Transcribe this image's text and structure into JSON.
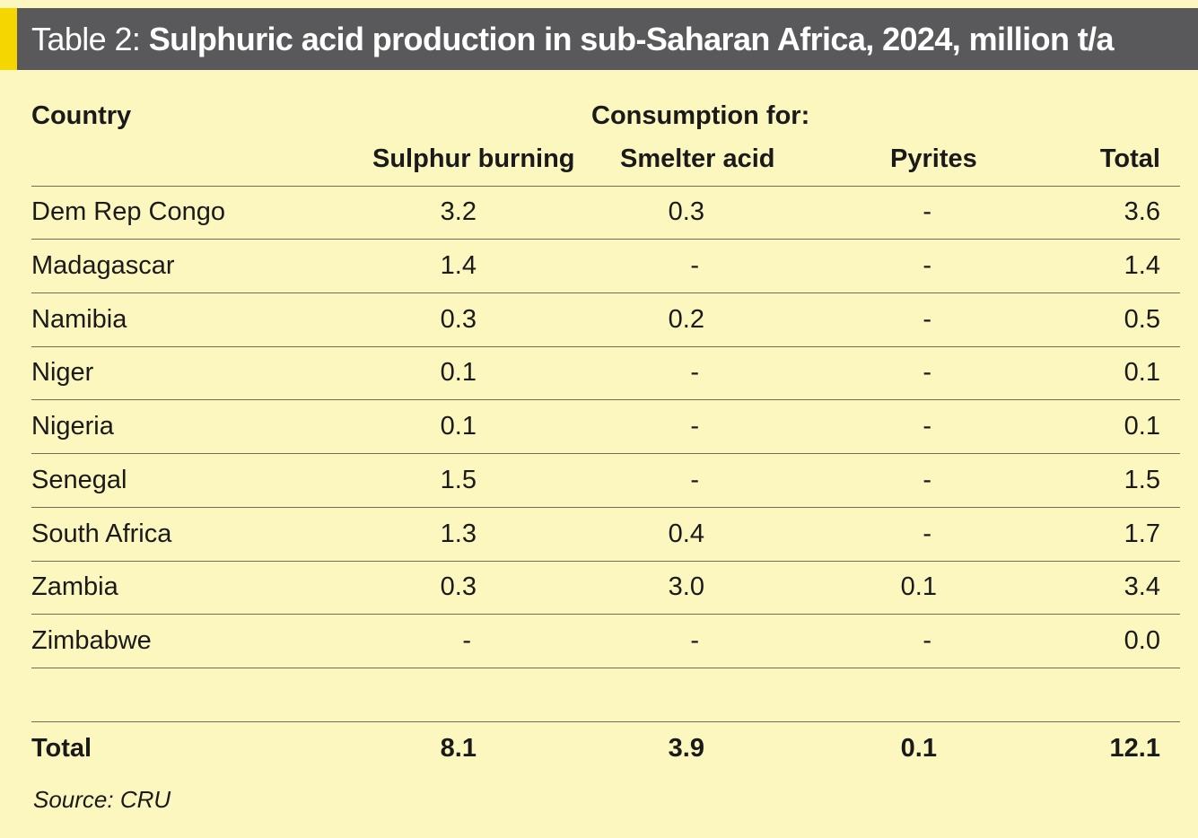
{
  "title": {
    "lead": "Table 2: ",
    "main": "Sulphuric acid production in sub-Saharan Africa, 2024, million t/a"
  },
  "headers": {
    "country": "Country",
    "group": "Consumption for:",
    "sulphur_burning": "Sulphur burning",
    "smelter_acid": "Smelter acid",
    "pyrites": "Pyrites",
    "total": "Total"
  },
  "rows": [
    {
      "country": "Dem Rep Congo",
      "sulphur_burning": "3.2",
      "smelter_acid": "0.3",
      "pyrites": "-",
      "total": "3.6"
    },
    {
      "country": "Madagascar",
      "sulphur_burning": "1.4",
      "smelter_acid": "-",
      "pyrites": "-",
      "total": "1.4"
    },
    {
      "country": "Namibia",
      "sulphur_burning": "0.3",
      "smelter_acid": "0.2",
      "pyrites": "-",
      "total": "0.5"
    },
    {
      "country": "Niger",
      "sulphur_burning": "0.1",
      "smelter_acid": "-",
      "pyrites": "-",
      "total": "0.1"
    },
    {
      "country": "Nigeria",
      "sulphur_burning": "0.1",
      "smelter_acid": "-",
      "pyrites": "-",
      "total": "0.1"
    },
    {
      "country": "Senegal",
      "sulphur_burning": "1.5",
      "smelter_acid": "-",
      "pyrites": "-",
      "total": "1.5"
    },
    {
      "country": "South Africa",
      "sulphur_burning": "1.3",
      "smelter_acid": "0.4",
      "pyrites": "-",
      "total": "1.7"
    },
    {
      "country": "Zambia",
      "sulphur_burning": "0.3",
      "smelter_acid": "3.0",
      "pyrites": "0.1",
      "total": "3.4"
    },
    {
      "country": "Zimbabwe",
      "sulphur_burning": "-",
      "smelter_acid": "-",
      "pyrites": "-",
      "total": "0.0"
    }
  ],
  "totals": {
    "label": "Total",
    "sulphur_burning": "8.1",
    "smelter_acid": "3.9",
    "pyrites": "0.1",
    "total": "12.1"
  },
  "source": "Source: CRU",
  "colors": {
    "background": "#fcf6bf",
    "title_bar": "#59595b",
    "accent": "#f5d600"
  }
}
